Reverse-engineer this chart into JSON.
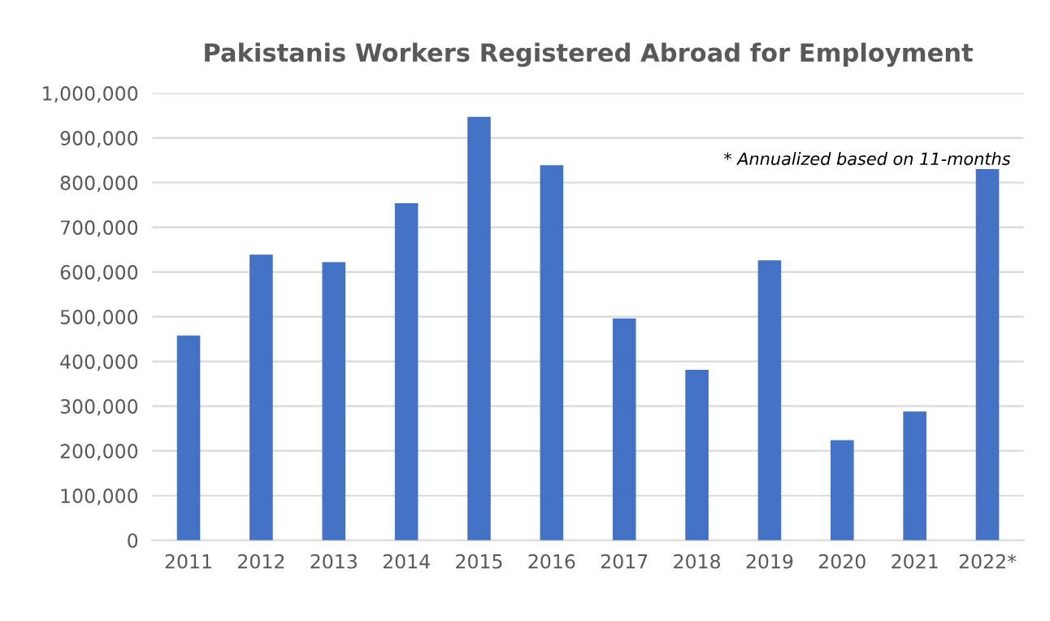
{
  "chart_data": {
    "type": "bar",
    "title": "Pakistanis Workers Registered Abroad for Employment",
    "categories": [
      "2011",
      "2012",
      "2013",
      "2014",
      "2015",
      "2016",
      "2017",
      "2018",
      "2019",
      "2020",
      "2021",
      "2022*"
    ],
    "values": [
      458000,
      639000,
      622000,
      754000,
      947000,
      839000,
      496000,
      381000,
      626000,
      224000,
      288000,
      830000
    ],
    "color": "#4472c4",
    "ylim": [
      0,
      1000000
    ],
    "yticks": [
      {
        "value": 0,
        "label": "0"
      },
      {
        "value": 100000,
        "label": "100,000"
      },
      {
        "value": 200000,
        "label": "200,000"
      },
      {
        "value": 300000,
        "label": "300,000"
      },
      {
        "value": 400000,
        "label": "400,000"
      },
      {
        "value": 500000,
        "label": "500,000"
      },
      {
        "value": 600000,
        "label": "600,000"
      },
      {
        "value": 700000,
        "label": "700,000"
      },
      {
        "value": 800000,
        "label": "800,000"
      },
      {
        "value": 900000,
        "label": "900,000"
      },
      {
        "value": 1000000,
        "label": "1,000,000"
      }
    ],
    "grid": "y",
    "annotations": [
      "* Annualized based on 11-months"
    ]
  }
}
